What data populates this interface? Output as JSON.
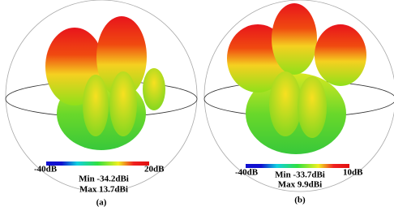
{
  "panels": [
    {
      "scale_min": "-40dB",
      "scale_max": "20dB",
      "min": "Min -34.2dBi",
      "max": "Max 13.7dBi",
      "caption": "(a)"
    },
    {
      "scale_min": "-40dB",
      "scale_max": "10dB",
      "min": "Min -33.7dBi",
      "max": "Max 9.9dBi",
      "caption": "(b)"
    }
  ]
}
